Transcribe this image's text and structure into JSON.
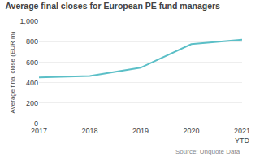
{
  "chart_data": {
    "type": "line",
    "title": "Average final closes for European PE fund managers",
    "ylabel": "Average final close (EUR m)",
    "categories": [
      "2017",
      "2018",
      "2019",
      "2020",
      "2021\nYTD"
    ],
    "values": [
      450,
      465,
      545,
      775,
      820
    ],
    "color": "#5bbfc7",
    "ylim": [
      0,
      1000
    ],
    "yticks": [
      0,
      200,
      400,
      600,
      800,
      {
        "value": 1000,
        "label": "1,000"
      }
    ],
    "grid": true,
    "annotations": [
      "Source: Unquote Data"
    ]
  }
}
